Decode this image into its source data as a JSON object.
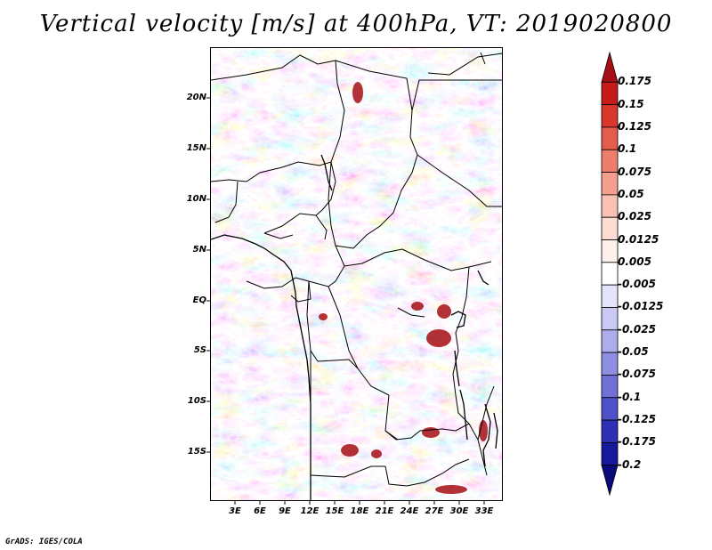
{
  "title": "Vertical velocity [m/s] at 400hPa, VT: 2019020800",
  "credit": "GrADS: IGES/COLA",
  "lat_axis": [
    "20N",
    "15N",
    "10N",
    "5N",
    "EQ",
    "5S",
    "10S",
    "15S"
  ],
  "lon_axis": [
    "3E",
    "6E",
    "9E",
    "12E",
    "15E",
    "18E",
    "21E",
    "24E",
    "27E",
    "30E",
    "33E"
  ],
  "colorbar": {
    "labels": [
      "0.175",
      "0.15",
      "0.125",
      "0.1",
      "0.075",
      "0.05",
      "0.025",
      "0.0125",
      "0.005",
      "-0.005",
      "-0.0125",
      "-0.025",
      "-0.05",
      "-0.075",
      "-0.1",
      "-0.125",
      "-0.175",
      "-0.2"
    ],
    "colors": [
      "#a50f15",
      "#c51b1b",
      "#d9372e",
      "#e45c4c",
      "#ee7e6c",
      "#f5a08f",
      "#f9c1b4",
      "#fcdcd3",
      "#fff0ec",
      "#ffffff",
      "#e4e4fa",
      "#c9c9f4",
      "#adadec",
      "#8f8fe2",
      "#7070d6",
      "#5050c8",
      "#3030b4",
      "#18189c",
      "#0a0a7a"
    ]
  }
}
